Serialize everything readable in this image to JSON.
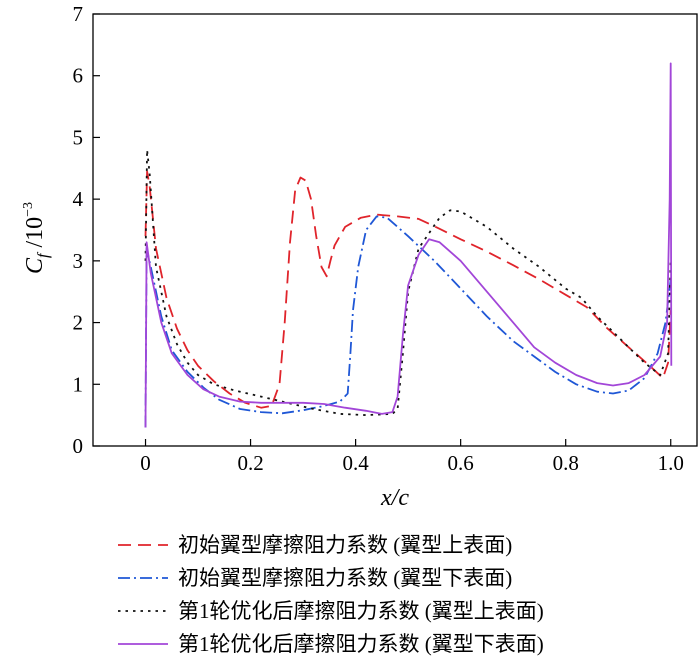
{
  "chart_data": {
    "type": "line",
    "ylabel": {
      "main": "C",
      "sub": "f",
      "rest": " /10",
      "sup": "−3"
    },
    "xlabel": "x/c",
    "xlim": [
      -0.1,
      1.05
    ],
    "ylim": [
      0,
      7
    ],
    "xticks": [
      "0",
      "0.2",
      "0.4",
      "0.6",
      "0.8",
      "1.0"
    ],
    "xtick_values": [
      0,
      0.2,
      0.4,
      0.6,
      0.8,
      1.0
    ],
    "yticks": [
      "0",
      "1",
      "2",
      "3",
      "4",
      "5",
      "6",
      "7"
    ],
    "ytick_values": [
      0,
      1,
      2,
      3,
      4,
      5,
      6,
      7
    ],
    "legend_position": "below",
    "series": [
      {
        "name": "初始翼型摩擦阻力系数 (翼型上表面)",
        "color": "#e0242b",
        "dash": "dashed",
        "points": [
          [
            0,
            3.4
          ],
          [
            0.003,
            4.45
          ],
          [
            0.008,
            4.2
          ],
          [
            0.02,
            3.2
          ],
          [
            0.04,
            2.4
          ],
          [
            0.06,
            1.9
          ],
          [
            0.08,
            1.55
          ],
          [
            0.1,
            1.3
          ],
          [
            0.13,
            1.05
          ],
          [
            0.16,
            0.85
          ],
          [
            0.19,
            0.7
          ],
          [
            0.22,
            0.62
          ],
          [
            0.24,
            0.65
          ],
          [
            0.255,
            1.0
          ],
          [
            0.265,
            2.0
          ],
          [
            0.275,
            3.3
          ],
          [
            0.285,
            4.15
          ],
          [
            0.295,
            4.35
          ],
          [
            0.305,
            4.3
          ],
          [
            0.315,
            4.0
          ],
          [
            0.325,
            3.4
          ],
          [
            0.335,
            2.9
          ],
          [
            0.345,
            2.75
          ],
          [
            0.352,
            3.0
          ],
          [
            0.36,
            3.25
          ],
          [
            0.38,
            3.55
          ],
          [
            0.41,
            3.7
          ],
          [
            0.44,
            3.75
          ],
          [
            0.48,
            3.72
          ],
          [
            0.52,
            3.68
          ],
          [
            0.56,
            3.52
          ],
          [
            0.6,
            3.35
          ],
          [
            0.65,
            3.15
          ],
          [
            0.7,
            2.93
          ],
          [
            0.75,
            2.7
          ],
          [
            0.8,
            2.45
          ],
          [
            0.84,
            2.25
          ],
          [
            0.88,
            1.9
          ],
          [
            0.92,
            1.6
          ],
          [
            0.96,
            1.3
          ],
          [
            0.985,
            1.1
          ],
          [
            0.995,
            1.35
          ],
          [
            1.0,
            2.2
          ]
        ]
      },
      {
        "name": "初始翼型摩擦阻力系数 (翼型下表面)",
        "color": "#1f57d6",
        "dash": "dashdot",
        "points": [
          [
            0,
            0.3
          ],
          [
            0.002,
            3.2
          ],
          [
            0.01,
            2.9
          ],
          [
            0.03,
            2.1
          ],
          [
            0.05,
            1.55
          ],
          [
            0.08,
            1.2
          ],
          [
            0.11,
            0.95
          ],
          [
            0.14,
            0.75
          ],
          [
            0.18,
            0.6
          ],
          [
            0.22,
            0.55
          ],
          [
            0.26,
            0.53
          ],
          [
            0.3,
            0.58
          ],
          [
            0.34,
            0.65
          ],
          [
            0.37,
            0.72
          ],
          [
            0.385,
            0.85
          ],
          [
            0.39,
            1.5
          ],
          [
            0.395,
            2.2
          ],
          [
            0.405,
            2.9
          ],
          [
            0.42,
            3.5
          ],
          [
            0.44,
            3.72
          ],
          [
            0.46,
            3.7
          ],
          [
            0.5,
            3.4
          ],
          [
            0.55,
            3.0
          ],
          [
            0.6,
            2.55
          ],
          [
            0.65,
            2.1
          ],
          [
            0.7,
            1.7
          ],
          [
            0.74,
            1.45
          ],
          [
            0.78,
            1.2
          ],
          [
            0.82,
            1.0
          ],
          [
            0.86,
            0.88
          ],
          [
            0.89,
            0.85
          ],
          [
            0.92,
            0.9
          ],
          [
            0.95,
            1.1
          ],
          [
            0.975,
            1.5
          ],
          [
            0.99,
            2.0
          ],
          [
            1.0,
            2.7
          ]
        ]
      },
      {
        "name": "第1轮优化后摩擦阻力系数 (翼型上表面)",
        "color": "#111111",
        "dash": "dotted",
        "points": [
          [
            0,
            3.0
          ],
          [
            0.003,
            4.8
          ],
          [
            0.008,
            4.4
          ],
          [
            0.02,
            2.9
          ],
          [
            0.04,
            2.1
          ],
          [
            0.06,
            1.65
          ],
          [
            0.08,
            1.35
          ],
          [
            0.1,
            1.15
          ],
          [
            0.13,
            1.0
          ],
          [
            0.17,
            0.9
          ],
          [
            0.22,
            0.8
          ],
          [
            0.27,
            0.7
          ],
          [
            0.32,
            0.6
          ],
          [
            0.37,
            0.52
          ],
          [
            0.42,
            0.5
          ],
          [
            0.47,
            0.52
          ],
          [
            0.48,
            0.6
          ],
          [
            0.49,
            1.5
          ],
          [
            0.5,
            2.5
          ],
          [
            0.52,
            3.2
          ],
          [
            0.54,
            3.45
          ],
          [
            0.56,
            3.7
          ],
          [
            0.58,
            3.82
          ],
          [
            0.6,
            3.8
          ],
          [
            0.65,
            3.55
          ],
          [
            0.7,
            3.2
          ],
          [
            0.75,
            2.9
          ],
          [
            0.8,
            2.55
          ],
          [
            0.83,
            2.4
          ],
          [
            0.86,
            2.1
          ],
          [
            0.89,
            1.85
          ],
          [
            0.92,
            1.6
          ],
          [
            0.95,
            1.35
          ],
          [
            0.98,
            1.15
          ],
          [
            0.995,
            1.5
          ],
          [
            1.0,
            3.0
          ]
        ]
      },
      {
        "name": "第1轮优化后摩擦阻力系数 (翼型下表面)",
        "color": "#a246d8",
        "dash": "solid",
        "points": [
          [
            0,
            0.3
          ],
          [
            0.002,
            3.3
          ],
          [
            0.01,
            2.8
          ],
          [
            0.03,
            2.0
          ],
          [
            0.05,
            1.5
          ],
          [
            0.08,
            1.15
          ],
          [
            0.11,
            0.92
          ],
          [
            0.14,
            0.8
          ],
          [
            0.18,
            0.72
          ],
          [
            0.22,
            0.7
          ],
          [
            0.26,
            0.7
          ],
          [
            0.3,
            0.7
          ],
          [
            0.34,
            0.68
          ],
          [
            0.38,
            0.62
          ],
          [
            0.42,
            0.57
          ],
          [
            0.45,
            0.52
          ],
          [
            0.47,
            0.55
          ],
          [
            0.48,
            0.8
          ],
          [
            0.49,
            1.8
          ],
          [
            0.5,
            2.6
          ],
          [
            0.52,
            3.1
          ],
          [
            0.54,
            3.35
          ],
          [
            0.56,
            3.3
          ],
          [
            0.6,
            3.0
          ],
          [
            0.65,
            2.5
          ],
          [
            0.7,
            2.0
          ],
          [
            0.74,
            1.6
          ],
          [
            0.78,
            1.35
          ],
          [
            0.82,
            1.15
          ],
          [
            0.86,
            1.02
          ],
          [
            0.89,
            0.98
          ],
          [
            0.92,
            1.02
          ],
          [
            0.95,
            1.15
          ],
          [
            0.98,
            1.45
          ],
          [
            0.993,
            2.0
          ],
          [
            0.998,
            4.0
          ],
          [
            1.0,
            6.2
          ],
          [
            1.001,
            1.3
          ]
        ]
      }
    ]
  }
}
